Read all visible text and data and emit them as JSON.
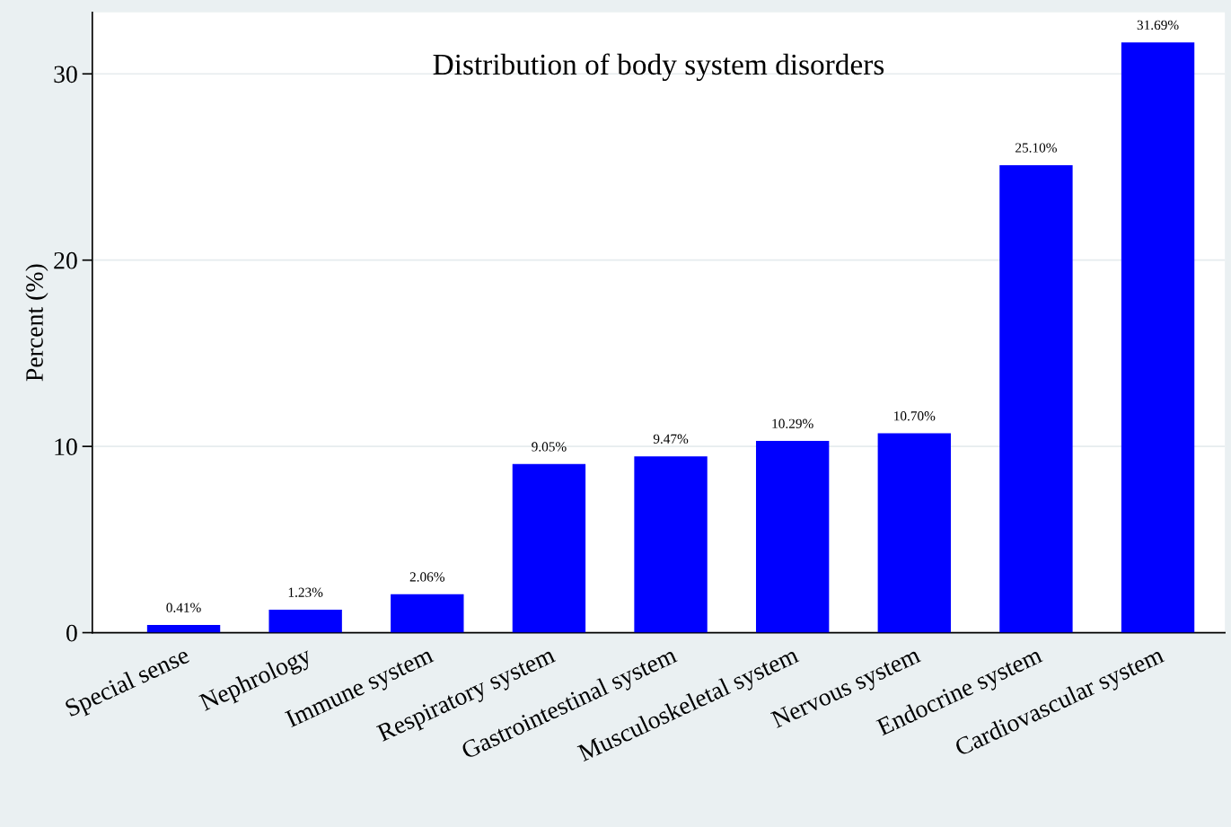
{
  "chart_data": {
    "type": "bar",
    "title": "Distribution of body system disorders",
    "ylabel": "Percent (%)",
    "categories": [
      "Special sense",
      "Nephrology",
      "Immune system",
      "Respiratory system",
      "Gastrointestinal system",
      "Musculoskeletal system",
      "Nervous system",
      "Endocrine system",
      "Cardiovascular system"
    ],
    "values": [
      0.41,
      1.23,
      2.06,
      9.05,
      9.47,
      10.29,
      10.7,
      25.1,
      31.69
    ],
    "value_labels": [
      "0.41%",
      "1.23%",
      "2.06%",
      "9.05%",
      "9.47%",
      "10.29%",
      "10.70%",
      "25.10%",
      "31.69%"
    ],
    "color": "#0000ff",
    "ylim": [
      0,
      33.3
    ],
    "yticks": [
      0,
      10,
      20,
      30
    ],
    "grid": "y",
    "legend": false
  }
}
